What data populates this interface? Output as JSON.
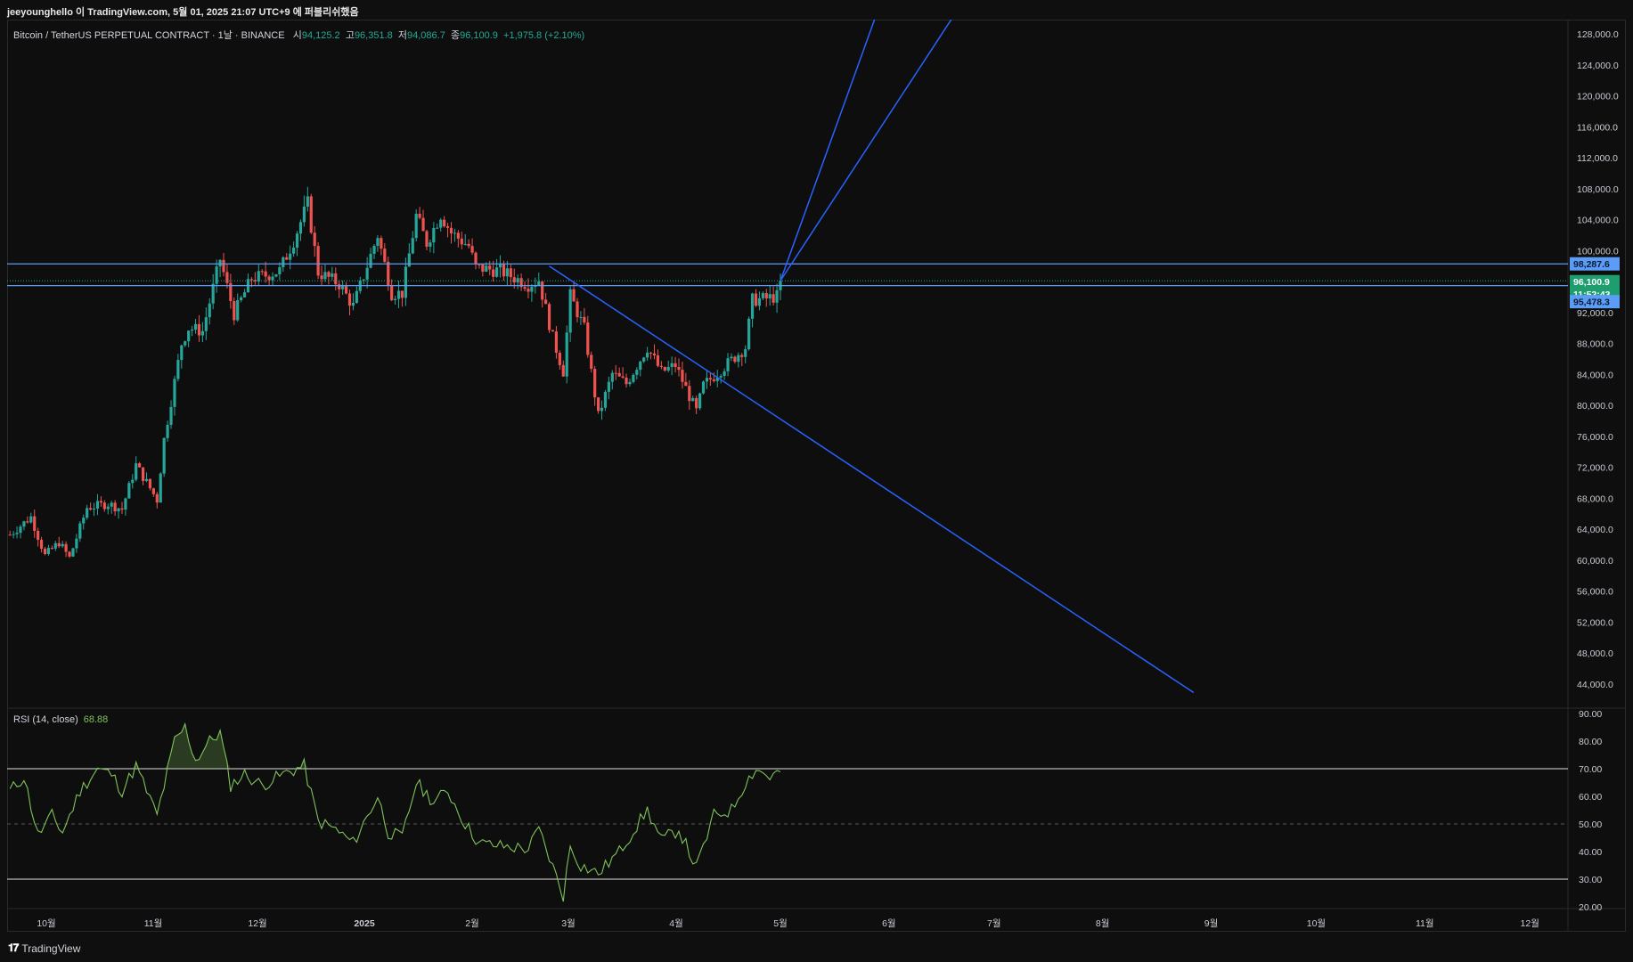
{
  "header": {
    "caption": "jeeyounghello 이 TradingView.com, 5월 01, 2025 21:07 UTC+9 에 퍼블리쉬했음"
  },
  "symbol": {
    "title": "Bitcoin / TetherUS PERPETUAL CONTRACT · 1날 · BINANCE",
    "open_label": "시",
    "open": "94,125.2",
    "high_label": "고",
    "high": "96,351.8",
    "low_label": "저",
    "low": "94,086.7",
    "close_label": "종",
    "close": "96,100.9",
    "change": "+1,975.8 (+2.10%)"
  },
  "footer": {
    "brand": "TradingView",
    "logo": "tradingview-logo-icon"
  },
  "colors": {
    "background": "#0e0e0e",
    "up": "#26a69a",
    "down": "#ef5350",
    "drawing": "#2962ff",
    "rsi": "#7ec35a",
    "tag_level": "#5b9cf6",
    "tag_price": "#1e9e6f"
  },
  "chart_data": [
    {
      "type": "candlestick",
      "title": "",
      "x_ticks": [
        "10월",
        "11월",
        "12월",
        "2025",
        "2월",
        "3월",
        "4월",
        "5월",
        "6월",
        "7월",
        "8월",
        "9월",
        "10월",
        "11월",
        "12월"
      ],
      "y_ticks": [
        "44,000.0",
        "48,000.0",
        "52,000.0",
        "56,000.0",
        "60,000.0",
        "64,000.0",
        "68,000.0",
        "72,000.0",
        "76,000.0",
        "80,000.0",
        "84,000.0",
        "88,000.0",
        "92,000.0",
        "96,000.0",
        "100,000.0",
        "104,000.0",
        "108,000.0",
        "112,000.0",
        "116,000.0",
        "120,000.0",
        "124,000.0",
        "128,000.0"
      ],
      "ylim": [
        42000,
        129500
      ],
      "x_range": [
        "2024-09-23",
        "2025-12-31"
      ],
      "close_path": [
        [
          "2024-09-23",
          63300
        ],
        [
          "2024-09-29",
          65600
        ],
        [
          "2024-10-03",
          60600
        ],
        [
          "2024-10-07",
          62300
        ],
        [
          "2024-10-10",
          60300
        ],
        [
          "2024-10-15",
          66800
        ],
        [
          "2024-10-21",
          67300
        ],
        [
          "2024-10-25",
          66600
        ],
        [
          "2024-10-29",
          72300
        ],
        [
          "2024-11-04",
          67800
        ],
        [
          "2024-11-06",
          75600
        ],
        [
          "2024-11-11",
          88000
        ],
        [
          "2024-11-13",
          90000
        ],
        [
          "2024-11-17",
          89600
        ],
        [
          "2024-11-22",
          98900
        ],
        [
          "2024-11-26",
          91800
        ],
        [
          "2024-12-01",
          96400
        ],
        [
          "2024-12-05",
          96800
        ],
        [
          "2024-12-09",
          97400
        ],
        [
          "2024-12-13",
          101300
        ],
        [
          "2024-12-17",
          106100
        ],
        [
          "2024-12-20",
          97200
        ],
        [
          "2024-12-26",
          95700
        ],
        [
          "2024-12-30",
          92800
        ],
        [
          "2025-01-06",
          102000
        ],
        [
          "2025-01-10",
          94500
        ],
        [
          "2025-01-13",
          94500
        ],
        [
          "2025-01-17",
          104500
        ],
        [
          "2025-01-20",
          101000
        ],
        [
          "2025-01-24",
          104700
        ],
        [
          "2025-01-27",
          102300
        ],
        [
          "2025-02-01",
          100600
        ],
        [
          "2025-02-03",
          97800
        ],
        [
          "2025-02-10",
          97400
        ],
        [
          "2025-02-18",
          95600
        ],
        [
          "2025-02-21",
          96200
        ],
        [
          "2025-02-25",
          88700
        ],
        [
          "2025-02-28",
          84400
        ],
        [
          "2025-03-02",
          94200
        ],
        [
          "2025-03-06",
          89900
        ],
        [
          "2025-03-10",
          78600
        ],
        [
          "2025-03-14",
          84100
        ],
        [
          "2025-03-18",
          82800
        ],
        [
          "2025-03-24",
          87500
        ],
        [
          "2025-03-28",
          84300
        ],
        [
          "2025-04-01",
          85200
        ],
        [
          "2025-04-07",
          79200
        ],
        [
          "2025-04-09",
          82600
        ],
        [
          "2025-04-13",
          84200
        ],
        [
          "2025-04-21",
          87500
        ],
        [
          "2025-04-23",
          93600
        ],
        [
          "2025-04-27",
          93800
        ],
        [
          "2025-04-30",
          94100
        ],
        [
          "2025-05-01",
          96100
        ]
      ],
      "horizontal_levels": [
        98287.6,
        95478.3
      ],
      "current_price": 96100.9,
      "countdown": "11:52:43",
      "price_tags": [
        {
          "label": "98,287.6",
          "value": 98287.6,
          "kind": "level"
        },
        {
          "label": "96,100.9",
          "value": 96100.9,
          "kind": "price"
        },
        {
          "label": "11:52:43",
          "value": 96100.9,
          "kind": "countdown"
        },
        {
          "label": "95,478.3",
          "value": 95478.3,
          "kind": "level"
        }
      ],
      "trend_lines": [
        {
          "from": [
            "2025-02-24",
            98000
          ],
          "to": [
            "2025-08-27",
            42900
          ]
        },
        {
          "from": [
            "2025-05-01",
            96100
          ],
          "to": [
            "2025-05-28",
            130000
          ]
        },
        {
          "from": [
            "2025-05-01",
            96100
          ],
          "to": [
            "2025-06-19",
            130000
          ]
        }
      ]
    },
    {
      "type": "line",
      "title": "RSI (14, close)",
      "last_value": "68.88",
      "y_ticks": [
        "20.00",
        "30.00",
        "40.00",
        "50.00",
        "60.00",
        "70.00",
        "80.00",
        "90.00"
      ],
      "ylim": [
        20,
        90
      ],
      "bands": {
        "upper": 70,
        "middle": 50,
        "lower": 30
      },
      "series": [
        [
          "2024-09-23",
          62
        ],
        [
          "2024-09-27",
          67
        ],
        [
          "2024-10-01",
          46
        ],
        [
          "2024-10-05",
          53
        ],
        [
          "2024-10-08",
          47
        ],
        [
          "2024-10-13",
          62
        ],
        [
          "2024-10-18",
          70
        ],
        [
          "2024-10-22",
          68
        ],
        [
          "2024-10-25",
          62
        ],
        [
          "2024-10-29",
          71
        ],
        [
          "2024-11-04",
          53
        ],
        [
          "2024-11-09",
          80
        ],
        [
          "2024-11-12",
          85
        ],
        [
          "2024-11-15",
          73
        ],
        [
          "2024-11-19",
          80
        ],
        [
          "2024-11-22",
          83
        ],
        [
          "2024-11-25",
          64
        ],
        [
          "2024-11-29",
          68
        ],
        [
          "2024-12-04",
          64
        ],
        [
          "2024-12-10",
          68
        ],
        [
          "2024-12-16",
          71
        ],
        [
          "2024-12-20",
          51
        ],
        [
          "2024-12-25",
          48
        ],
        [
          "2024-12-30",
          43
        ],
        [
          "2025-01-06",
          60
        ],
        [
          "2025-01-09",
          47
        ],
        [
          "2025-01-13",
          45
        ],
        [
          "2025-01-17",
          65
        ],
        [
          "2025-01-22",
          58
        ],
        [
          "2025-01-26",
          62
        ],
        [
          "2025-01-31",
          50
        ],
        [
          "2025-02-04",
          43
        ],
        [
          "2025-02-10",
          42
        ],
        [
          "2025-02-18",
          41
        ],
        [
          "2025-02-21",
          48
        ],
        [
          "2025-02-26",
          31
        ],
        [
          "2025-02-28",
          24
        ],
        [
          "2025-03-02",
          42
        ],
        [
          "2025-03-05",
          35
        ],
        [
          "2025-03-10",
          32
        ],
        [
          "2025-03-16",
          40
        ],
        [
          "2025-03-24",
          55
        ],
        [
          "2025-03-28",
          44
        ],
        [
          "2025-04-02",
          48
        ],
        [
          "2025-04-07",
          34
        ],
        [
          "2025-04-12",
          53
        ],
        [
          "2025-04-17",
          55
        ],
        [
          "2025-04-21",
          65
        ],
        [
          "2025-04-24",
          70
        ],
        [
          "2025-04-28",
          67
        ],
        [
          "2025-05-01",
          68.88
        ]
      ]
    }
  ]
}
